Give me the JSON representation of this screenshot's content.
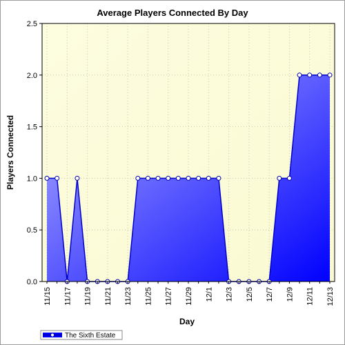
{
  "chart_data": {
    "type": "area",
    "title": "Average Players Connected By Day",
    "xlabel": "Day",
    "ylabel": "Players Connected",
    "ylim": [
      0,
      2.5
    ],
    "yticks": [
      "0.0",
      "0.5",
      "1.0",
      "1.5",
      "2.0",
      "2.5"
    ],
    "xtick_labels": [
      "11/15",
      "11/17",
      "11/19",
      "11/21",
      "11/23",
      "11/25",
      "11/27",
      "11/29",
      "12/1",
      "12/3",
      "12/5",
      "12/7",
      "12/9",
      "12/11",
      "12/13"
    ],
    "x": [
      "11/15",
      "11/16",
      "11/17",
      "11/18",
      "11/19",
      "11/20",
      "11/21",
      "11/22",
      "11/23",
      "11/24",
      "11/25",
      "11/26",
      "11/27",
      "11/28",
      "11/29",
      "11/30",
      "12/1",
      "12/2",
      "12/3",
      "12/4",
      "12/5",
      "12/6",
      "12/7",
      "12/8",
      "12/9",
      "12/10",
      "12/11",
      "12/12",
      "12/13"
    ],
    "series": [
      {
        "name": "The Sixth Estate",
        "values": [
          1,
          1,
          0,
          1,
          0,
          0,
          0,
          0,
          0,
          1,
          1,
          1,
          1,
          1,
          1,
          1,
          1,
          1,
          0,
          0,
          0,
          0,
          0,
          1,
          1,
          2,
          2,
          2,
          2
        ]
      }
    ],
    "grid": true,
    "legend_position": "bottom-left",
    "colors": {
      "plot_bg_start": "#fdfde0",
      "plot_bg_end": "#fafad2",
      "area_light": "#b4b4ff",
      "area_dark": "#0000ff",
      "line": "#0000cc",
      "marker_fill": "#ffffff"
    }
  }
}
